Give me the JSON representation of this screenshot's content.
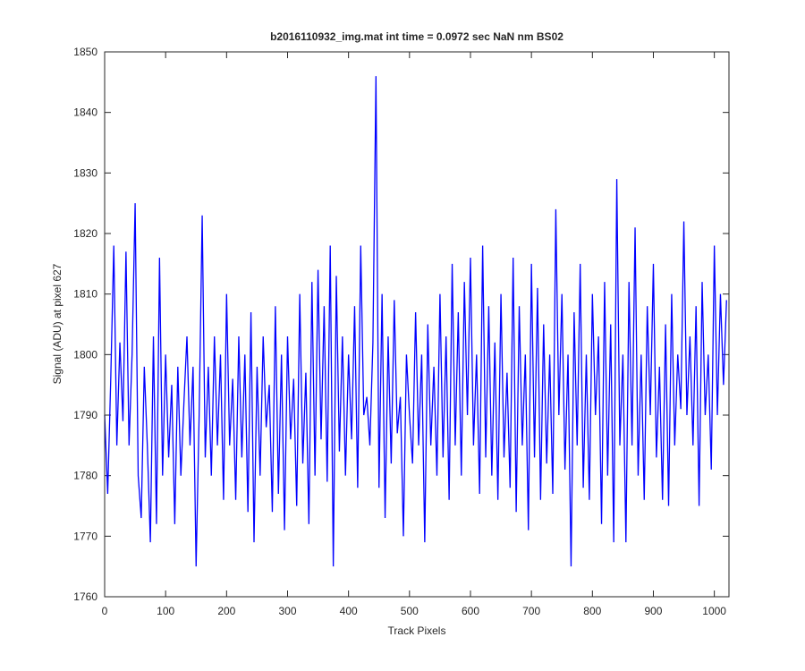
{
  "chart_data": {
    "type": "line",
    "title": "b2016110932_img.mat int time = 0.0972 sec  NaN nm BS02",
    "x_label": "Track Pixels",
    "y_label": "Signal (ADU) at pixel 627",
    "x": [
      0,
      5,
      10,
      15,
      20,
      25,
      30,
      35,
      40,
      45,
      50,
      55,
      60,
      65,
      70,
      75,
      80,
      85,
      90,
      95,
      100,
      105,
      110,
      115,
      120,
      125,
      130,
      135,
      140,
      145,
      150,
      155,
      160,
      165,
      170,
      175,
      180,
      185,
      190,
      195,
      200,
      205,
      210,
      215,
      220,
      225,
      230,
      235,
      240,
      245,
      250,
      255,
      260,
      265,
      270,
      275,
      280,
      285,
      290,
      295,
      300,
      305,
      310,
      315,
      320,
      325,
      330,
      335,
      340,
      345,
      350,
      355,
      360,
      365,
      370,
      375,
      380,
      385,
      390,
      395,
      400,
      405,
      410,
      415,
      420,
      425,
      430,
      435,
      440,
      445,
      450,
      455,
      460,
      465,
      470,
      475,
      480,
      485,
      490,
      495,
      500,
      505,
      510,
      515,
      520,
      525,
      530,
      535,
      540,
      545,
      550,
      555,
      560,
      565,
      570,
      575,
      580,
      585,
      590,
      595,
      600,
      605,
      610,
      615,
      620,
      625,
      630,
      635,
      640,
      645,
      650,
      655,
      660,
      665,
      670,
      675,
      680,
      685,
      690,
      695,
      700,
      705,
      710,
      715,
      720,
      725,
      730,
      735,
      740,
      745,
      750,
      755,
      760,
      765,
      770,
      775,
      780,
      785,
      790,
      795,
      800,
      805,
      810,
      815,
      820,
      825,
      830,
      835,
      840,
      845,
      850,
      855,
      860,
      865,
      870,
      875,
      880,
      885,
      890,
      895,
      900,
      905,
      910,
      915,
      920,
      925,
      930,
      935,
      940,
      945,
      950,
      955,
      960,
      965,
      970,
      975,
      980,
      985,
      990,
      995,
      1000,
      1005,
      1010,
      1015,
      1020
    ],
    "series": [
      {
        "name": "signal",
        "color": "#0000ff",
        "values": [
          1790,
          1777,
          1796,
          1818,
          1785,
          1802,
          1789,
          1817,
          1785,
          1800,
          1825,
          1780,
          1773,
          1798,
          1785,
          1769,
          1803,
          1772,
          1816,
          1780,
          1800,
          1783,
          1795,
          1772,
          1798,
          1780,
          1792,
          1803,
          1785,
          1798,
          1765,
          1790,
          1823,
          1783,
          1798,
          1780,
          1803,
          1785,
          1800,
          1776,
          1810,
          1785,
          1796,
          1776,
          1803,
          1783,
          1800,
          1774,
          1807,
          1769,
          1798,
          1780,
          1803,
          1788,
          1795,
          1774,
          1808,
          1777,
          1800,
          1771,
          1803,
          1786,
          1796,
          1775,
          1810,
          1782,
          1797,
          1772,
          1812,
          1780,
          1814,
          1786,
          1808,
          1779,
          1818,
          1765,
          1813,
          1784,
          1803,
          1780,
          1800,
          1786,
          1808,
          1778,
          1818,
          1790,
          1793,
          1785,
          1802,
          1846,
          1778,
          1810,
          1773,
          1803,
          1782,
          1809,
          1787,
          1793,
          1770,
          1800,
          1790,
          1782,
          1807,
          1785,
          1800,
          1769,
          1805,
          1785,
          1798,
          1780,
          1810,
          1783,
          1803,
          1776,
          1815,
          1785,
          1807,
          1780,
          1812,
          1790,
          1816,
          1785,
          1800,
          1777,
          1818,
          1783,
          1808,
          1780,
          1802,
          1776,
          1810,
          1783,
          1797,
          1778,
          1816,
          1774,
          1808,
          1785,
          1800,
          1771,
          1815,
          1783,
          1811,
          1776,
          1805,
          1782,
          1800,
          1777,
          1824,
          1790,
          1810,
          1781,
          1800,
          1765,
          1807,
          1785,
          1815,
          1778,
          1800,
          1776,
          1810,
          1790,
          1803,
          1772,
          1812,
          1780,
          1805,
          1769,
          1829,
          1785,
          1800,
          1769,
          1812,
          1785,
          1821,
          1780,
          1800,
          1776,
          1808,
          1790,
          1815,
          1783,
          1798,
          1776,
          1805,
          1775,
          1810,
          1785,
          1800,
          1791,
          1822,
          1790,
          1803,
          1785,
          1808,
          1775,
          1812,
          1790,
          1800,
          1781,
          1818,
          1790,
          1810,
          1795,
          1809
        ]
      }
    ],
    "xlim": [
      0,
      1024
    ],
    "ylim": [
      1760,
      1850
    ],
    "xticks": [
      0,
      100,
      200,
      300,
      400,
      500,
      600,
      700,
      800,
      900,
      1000
    ],
    "yticks": [
      1760,
      1770,
      1780,
      1790,
      1800,
      1810,
      1820,
      1830,
      1840,
      1850
    ]
  }
}
